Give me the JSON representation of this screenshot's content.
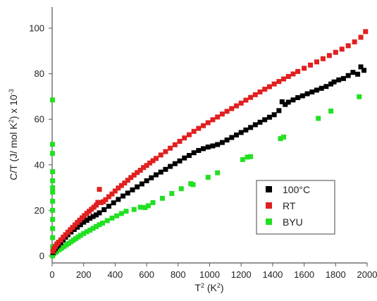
{
  "chart_data": {
    "type": "scatter",
    "title": "",
    "xlabel": "T",
    "xlabel_sup": "2",
    "xlabel_unit_pre": " (K",
    "xlabel_unit_sup": "2",
    "xlabel_unit_post": ")",
    "ylabel": "C/T (J/ mol K",
    "ylabel_sup": "2",
    "ylabel_mid": ") x 10",
    "ylabel_sup2": "-3",
    "xlim": [
      0,
      2000
    ],
    "ylim": [
      -2,
      110
    ],
    "xticks": [
      0,
      200,
      400,
      600,
      800,
      1000,
      1200,
      1400,
      1600,
      1800,
      2000
    ],
    "yticks": [
      0,
      20,
      40,
      60,
      80,
      100
    ],
    "grid": false,
    "legend_position": "lower-right",
    "series": [
      {
        "name": "100°C",
        "color": "#000000",
        "points": [
          [
            5,
            1.5
          ],
          [
            12,
            2.5
          ],
          [
            20,
            3.2
          ],
          [
            30,
            4
          ],
          [
            40,
            4.8
          ],
          [
            55,
            5.8
          ],
          [
            70,
            7
          ],
          [
            85,
            8.2
          ],
          [
            100,
            9.3
          ],
          [
            120,
            10.5
          ],
          [
            140,
            11.6
          ],
          [
            160,
            12.6
          ],
          [
            180,
            13.7
          ],
          [
            200,
            14.8
          ],
          [
            220,
            15.6
          ],
          [
            240,
            16.5
          ],
          [
            260,
            17.3
          ],
          [
            280,
            18
          ],
          [
            300,
            18.9
          ],
          [
            330,
            20.3
          ],
          [
            360,
            21.8
          ],
          [
            390,
            23.3
          ],
          [
            420,
            24.8
          ],
          [
            450,
            26.3
          ],
          [
            480,
            27.6
          ],
          [
            510,
            29
          ],
          [
            540,
            30.3
          ],
          [
            570,
            31.6
          ],
          [
            600,
            33
          ],
          [
            630,
            34.3
          ],
          [
            660,
            35.6
          ],
          [
            690,
            36.8
          ],
          [
            720,
            38
          ],
          [
            750,
            39.3
          ],
          [
            780,
            40.5
          ],
          [
            810,
            41.7
          ],
          [
            840,
            43
          ],
          [
            870,
            44.1
          ],
          [
            900,
            45.3
          ],
          [
            930,
            46.3
          ],
          [
            960,
            47.1
          ],
          [
            990,
            47.8
          ],
          [
            1020,
            48.3
          ],
          [
            1050,
            48.9
          ],
          [
            1080,
            49.8
          ],
          [
            1110,
            50.9
          ],
          [
            1140,
            52
          ],
          [
            1170,
            53.1
          ],
          [
            1200,
            54.2
          ],
          [
            1230,
            55.3
          ],
          [
            1260,
            56.4
          ],
          [
            1290,
            57.6
          ],
          [
            1320,
            58.7
          ],
          [
            1350,
            59.8
          ],
          [
            1380,
            60.9
          ],
          [
            1410,
            62
          ],
          [
            1440,
            63.8
          ],
          [
            1460,
            67.7
          ],
          [
            1480,
            66.5
          ],
          [
            1500,
            67.5
          ],
          [
            1530,
            68.5
          ],
          [
            1560,
            69.5
          ],
          [
            1590,
            70.3
          ],
          [
            1620,
            71.2
          ],
          [
            1650,
            72
          ],
          [
            1680,
            72.8
          ],
          [
            1710,
            73.6
          ],
          [
            1740,
            74.4
          ],
          [
            1770,
            75.5
          ],
          [
            1790,
            76.4
          ],
          [
            1820,
            77.3
          ],
          [
            1850,
            77.9
          ],
          [
            1880,
            79.2
          ],
          [
            1910,
            80.6
          ],
          [
            1940,
            79.8
          ],
          [
            1960,
            83
          ],
          [
            1980,
            81.5
          ]
        ]
      },
      {
        "name": "RT",
        "color": "#e02020",
        "points": [
          [
            5,
            2
          ],
          [
            12,
            3.2
          ],
          [
            20,
            4.2
          ],
          [
            30,
            5.2
          ],
          [
            40,
            6
          ],
          [
            55,
            7
          ],
          [
            70,
            8.2
          ],
          [
            85,
            9.3
          ],
          [
            100,
            10.4
          ],
          [
            115,
            11.5
          ],
          [
            130,
            12.5
          ],
          [
            145,
            13.6
          ],
          [
            160,
            14.7
          ],
          [
            175,
            15.7
          ],
          [
            190,
            16.7
          ],
          [
            205,
            17.7
          ],
          [
            220,
            18.7
          ],
          [
            235,
            19.6
          ],
          [
            250,
            20.5
          ],
          [
            265,
            21.4
          ],
          [
            280,
            22.3
          ],
          [
            290,
            23.5
          ],
          [
            300,
            29.2
          ],
          [
            310,
            23.4
          ],
          [
            325,
            23.8
          ],
          [
            340,
            24.7
          ],
          [
            360,
            26
          ],
          [
            380,
            27.2
          ],
          [
            400,
            28.5
          ],
          [
            420,
            29.8
          ],
          [
            440,
            30.9
          ],
          [
            460,
            32
          ],
          [
            480,
            33.2
          ],
          [
            500,
            34.4
          ],
          [
            520,
            35.5
          ],
          [
            540,
            36.6
          ],
          [
            560,
            37.6
          ],
          [
            580,
            38.8
          ],
          [
            600,
            39.7
          ],
          [
            620,
            40.8
          ],
          [
            640,
            41.8
          ],
          [
            660,
            42.8
          ],
          [
            690,
            44.3
          ],
          [
            720,
            45.8
          ],
          [
            750,
            47.3
          ],
          [
            780,
            48.8
          ],
          [
            810,
            50.3
          ],
          [
            840,
            51.8
          ],
          [
            870,
            53.2
          ],
          [
            900,
            54.7
          ],
          [
            930,
            56
          ],
          [
            960,
            57.2
          ],
          [
            990,
            58.5
          ],
          [
            1020,
            59.8
          ],
          [
            1050,
            61
          ],
          [
            1080,
            62.3
          ],
          [
            1110,
            63.5
          ],
          [
            1140,
            64.7
          ],
          [
            1170,
            65.9
          ],
          [
            1200,
            67.1
          ],
          [
            1230,
            68.4
          ],
          [
            1260,
            69.6
          ],
          [
            1290,
            70.8
          ],
          [
            1320,
            72
          ],
          [
            1350,
            73.2
          ],
          [
            1380,
            74.3
          ],
          [
            1410,
            75.5
          ],
          [
            1440,
            76.6
          ],
          [
            1470,
            77.7
          ],
          [
            1500,
            78.8
          ],
          [
            1530,
            79.9
          ],
          [
            1560,
            81
          ],
          [
            1600,
            82.4
          ],
          [
            1640,
            83.8
          ],
          [
            1680,
            85.2
          ],
          [
            1720,
            86.6
          ],
          [
            1760,
            88
          ],
          [
            1800,
            89.4
          ],
          [
            1840,
            90.8
          ],
          [
            1880,
            92.3
          ],
          [
            1920,
            94
          ],
          [
            1960,
            96
          ],
          [
            1990,
            98.5
          ]
        ]
      },
      {
        "name": "BYU",
        "color": "#22e022",
        "points": [
          [
            2,
            68.5
          ],
          [
            2,
            49
          ],
          [
            2,
            45
          ],
          [
            3,
            37
          ],
          [
            3,
            33
          ],
          [
            3,
            30
          ],
          [
            3,
            28
          ],
          [
            3,
            24
          ],
          [
            3,
            20
          ],
          [
            3,
            16
          ],
          [
            3,
            12
          ],
          [
            3,
            8
          ],
          [
            3,
            4
          ],
          [
            3,
            0
          ],
          [
            10,
            1
          ],
          [
            20,
            1.5
          ],
          [
            30,
            2
          ],
          [
            45,
            2.7
          ],
          [
            60,
            3.4
          ],
          [
            75,
            4.1
          ],
          [
            90,
            4.8
          ],
          [
            105,
            5.5
          ],
          [
            120,
            6.2
          ],
          [
            135,
            6.9
          ],
          [
            150,
            7.6
          ],
          [
            165,
            8.3
          ],
          [
            180,
            9
          ],
          [
            200,
            9.8
          ],
          [
            220,
            10.6
          ],
          [
            240,
            11.3
          ],
          [
            260,
            12.1
          ],
          [
            280,
            12.9
          ],
          [
            300,
            13.7
          ],
          [
            320,
            14.4
          ],
          [
            350,
            15.5
          ],
          [
            380,
            16.6
          ],
          [
            410,
            17.6
          ],
          [
            440,
            18.6
          ],
          [
            470,
            19.6
          ],
          [
            520,
            20.4
          ],
          [
            560,
            21.4
          ],
          [
            590,
            21.2
          ],
          [
            610,
            22
          ],
          [
            640,
            23.4
          ],
          [
            700,
            25.3
          ],
          [
            760,
            27.4
          ],
          [
            820,
            29.5
          ],
          [
            880,
            31.7
          ],
          [
            895,
            31.3
          ],
          [
            990,
            34.5
          ],
          [
            1050,
            36.5
          ],
          [
            1210,
            42.3
          ],
          [
            1240,
            43.4
          ],
          [
            1260,
            43.6
          ],
          [
            1450,
            51.5
          ],
          [
            1470,
            52.2
          ],
          [
            1690,
            60.4
          ],
          [
            1770,
            63.6
          ],
          [
            1950,
            69.9
          ]
        ]
      }
    ]
  }
}
